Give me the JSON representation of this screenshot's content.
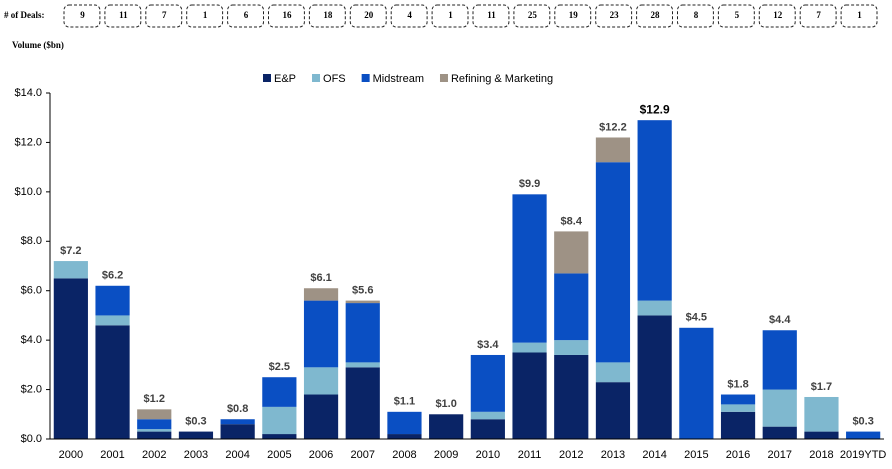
{
  "chart_data": {
    "type": "stacked-bar",
    "deals_label": "# of Deals:",
    "deals": [
      9,
      11,
      7,
      1,
      6,
      16,
      18,
      20,
      4,
      1,
      11,
      25,
      19,
      23,
      28,
      8,
      5,
      12,
      7,
      1
    ],
    "ylabel": "Volume ($bn)",
    "categories": [
      "2000",
      "2001",
      "2002",
      "2003",
      "2004",
      "2005",
      "2006",
      "2007",
      "2008",
      "2009",
      "2010",
      "2011",
      "2012",
      "2013",
      "2014",
      "2015",
      "2016",
      "2017",
      "2018",
      "2019YTD"
    ],
    "series": [
      {
        "name": "E&P",
        "color": "#0a2466",
        "values": [
          6.5,
          4.6,
          0.3,
          0.3,
          0.6,
          0.2,
          1.8,
          2.9,
          0.2,
          1.0,
          0.8,
          3.5,
          3.4,
          2.3,
          5.0,
          0,
          1.1,
          0.5,
          0.3,
          0
        ]
      },
      {
        "name": "OFS",
        "color": "#7fb8cf",
        "values": [
          0.7,
          0.4,
          0.1,
          0,
          0,
          1.1,
          1.1,
          0.2,
          0,
          0,
          0.3,
          0.4,
          0.6,
          0.8,
          0.6,
          0,
          0.3,
          1.5,
          1.4,
          0
        ]
      },
      {
        "name": "Midstream",
        "color": "#0a4fc3",
        "values": [
          0,
          1.2,
          0.4,
          0,
          0.2,
          1.2,
          2.7,
          2.4,
          0.9,
          0,
          2.3,
          6.0,
          2.7,
          8.1,
          7.3,
          4.5,
          0.4,
          2.4,
          0,
          0.3
        ]
      },
      {
        "name": "Refining & Marketing",
        "color": "#9e9285",
        "values": [
          0,
          0,
          0.4,
          0,
          0,
          0,
          0.5,
          0.1,
          0,
          0,
          0,
          0,
          1.7,
          1.0,
          0,
          0,
          0,
          0,
          0,
          0
        ]
      }
    ],
    "totals": [
      7.2,
      6.2,
      1.2,
      0.3,
      0.8,
      2.5,
      6.1,
      5.6,
      1.1,
      1.0,
      3.4,
      9.9,
      8.4,
      12.2,
      12.9,
      4.5,
      1.8,
      4.4,
      1.7,
      0.3
    ],
    "total_labels": [
      "$7.2",
      "$6.2",
      "$1.2",
      "$0.3",
      "$0.8",
      "$2.5",
      "$6.1",
      "$5.6",
      "$1.1",
      "$1.0",
      "$3.4",
      "$9.9",
      "$8.4",
      "$12.2",
      "$12.9",
      "$4.5",
      "$1.8",
      "$4.4",
      "$1.7",
      "$0.3"
    ],
    "bold_label": "2014",
    "ylim": [
      0,
      14
    ],
    "yticks": [
      {
        "value": 0,
        "label": "$0.0"
      },
      {
        "value": 2,
        "label": "$2.0"
      },
      {
        "value": 4,
        "label": "$4.0"
      },
      {
        "value": 6,
        "label": "$6.0"
      },
      {
        "value": 8,
        "label": "$8.0"
      },
      {
        "value": 10,
        "label": "$10.0"
      },
      {
        "value": 12,
        "label": "$12.0"
      },
      {
        "value": 14,
        "label": "$14.0"
      }
    ],
    "legend": "top"
  }
}
